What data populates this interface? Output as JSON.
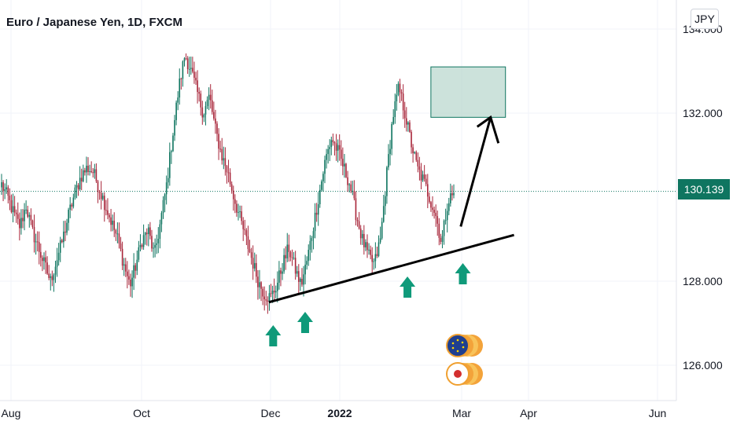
{
  "chart_data": {
    "type": "candlestick",
    "title": "Euro / Japanese Yen, 1D, FXCM",
    "currency": "JPY",
    "last_price": "130.139",
    "y_ticks": [
      {
        "value": 126,
        "label": "126.000"
      },
      {
        "value": 128,
        "label": "128.000"
      },
      {
        "value": 132,
        "label": "132.000"
      },
      {
        "value": 134,
        "label": "134.000"
      }
    ],
    "x_ticks": [
      {
        "label": "Aug",
        "bold": false
      },
      {
        "label": "Oct",
        "bold": false
      },
      {
        "label": "Dec",
        "bold": false
      },
      {
        "label": "2022",
        "bold": true
      },
      {
        "label": "Mar",
        "bold": false
      },
      {
        "label": "Apr",
        "bold": false
      },
      {
        "label": "Jun",
        "bold": false
      }
    ],
    "ylim": [
      125.3,
      134.6
    ],
    "price_path": [
      130.3,
      130.0,
      129.6,
      129.3,
      129.8,
      129.2,
      128.8,
      128.4,
      128.0,
      128.5,
      129.0,
      129.6,
      130.1,
      130.5,
      130.7,
      130.6,
      130.2,
      129.8,
      129.4,
      129.0,
      128.4,
      127.9,
      128.4,
      129.0,
      129.2,
      128.6,
      129.4,
      130.3,
      131.5,
      132.6,
      133.4,
      133.0,
      132.5,
      132.0,
      132.4,
      131.6,
      131.0,
      130.6,
      130.0,
      129.5,
      129.0,
      128.5,
      128.0,
      127.7,
      127.6,
      127.9,
      128.4,
      128.8,
      128.3,
      127.9,
      128.5,
      129.3,
      130.1,
      130.9,
      131.4,
      131.1,
      130.7,
      130.3,
      129.6,
      129.0,
      128.6,
      128.4,
      129.0,
      130.5,
      131.9,
      132.6,
      132.0,
      131.3,
      130.7,
      130.4,
      130.0,
      129.6,
      128.9,
      129.9,
      130.1
    ],
    "zone": {
      "x_start": "2022-02-14",
      "x_end": "2022-03-21",
      "low": 131.9,
      "high": 133.1
    },
    "trendline": {
      "points": [
        [
          "2021-11-30",
          127.5
        ],
        [
          "2022-03-25",
          129.1
        ]
      ]
    },
    "projection_arrow": {
      "from": [
        "2022-02-28",
        129.3
      ],
      "to": [
        "2022-03-14",
        131.9
      ]
    },
    "support_arrows": [
      "2021-12-02",
      "2021-12-17",
      "2022-02-03",
      "2022-03-01"
    ]
  }
}
